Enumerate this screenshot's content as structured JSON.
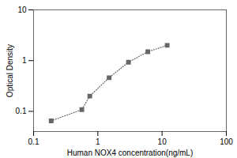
{
  "chart_data": {
    "type": "line",
    "x": [
      0.188,
      0.563,
      0.75,
      1.5,
      3.0,
      6.0,
      12.0
    ],
    "values": [
      0.065,
      0.108,
      0.2,
      0.46,
      0.93,
      1.5,
      2.0
    ],
    "xlabel": "Human NOX4 concentration(ng/mL)",
    "ylabel": "Optical Density",
    "xlim": [
      0.1,
      100
    ],
    "ylim": [
      0.04,
      10
    ],
    "xticks": [
      0.1,
      1,
      10,
      100
    ],
    "yticks": [
      0.1,
      1,
      10
    ],
    "log": true,
    "color": "#666666",
    "marker": "square",
    "line_style": "dotted"
  }
}
